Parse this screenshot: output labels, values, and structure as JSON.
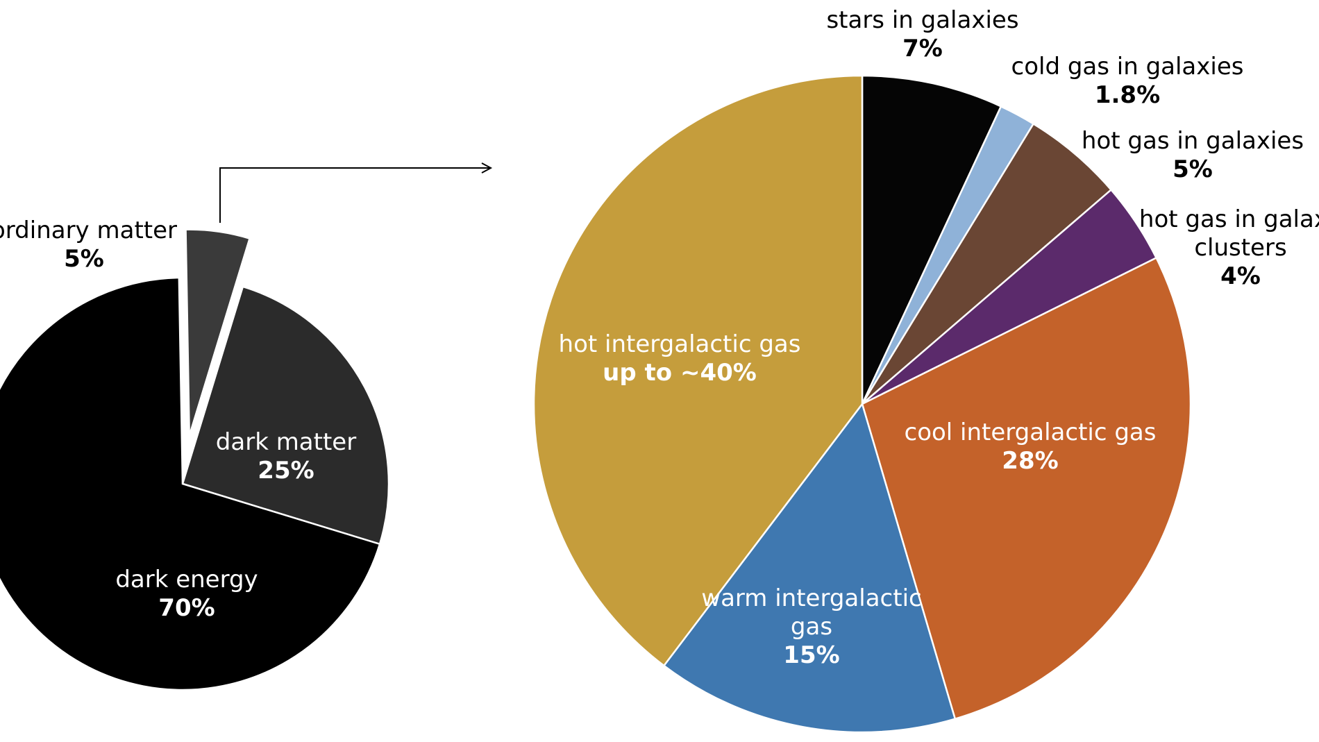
{
  "chart_data": [
    {
      "type": "pie",
      "categories": [
        "ordinary matter",
        "dark matter",
        "dark energy"
      ],
      "values": [
        5,
        25,
        70
      ],
      "value_labels": [
        "5%",
        "25%",
        "70%"
      ],
      "colors": [
        "#3a3a3a",
        "#2b2b2b",
        "#000000"
      ]
    },
    {
      "type": "pie",
      "categories": [
        "stars in galaxies",
        "cold gas in galaxies",
        "hot gas in galaxies",
        "hot gas in galaxy clusters",
        "cool intergalactic gas",
        "warm intergalactic gas",
        "hot intergalactic gas"
      ],
      "values": [
        7,
        1.8,
        5,
        4,
        28,
        15,
        40
      ],
      "value_labels": [
        "7%",
        "1.8%",
        "5%",
        "4%",
        "28%",
        "15%",
        "up to ~40%"
      ],
      "colors": [
        "#050505",
        "#8fb2d8",
        "#6a4634",
        "#5b2a6b",
        "#c4622a",
        "#3f78b0",
        "#c59d3c"
      ]
    }
  ]
}
